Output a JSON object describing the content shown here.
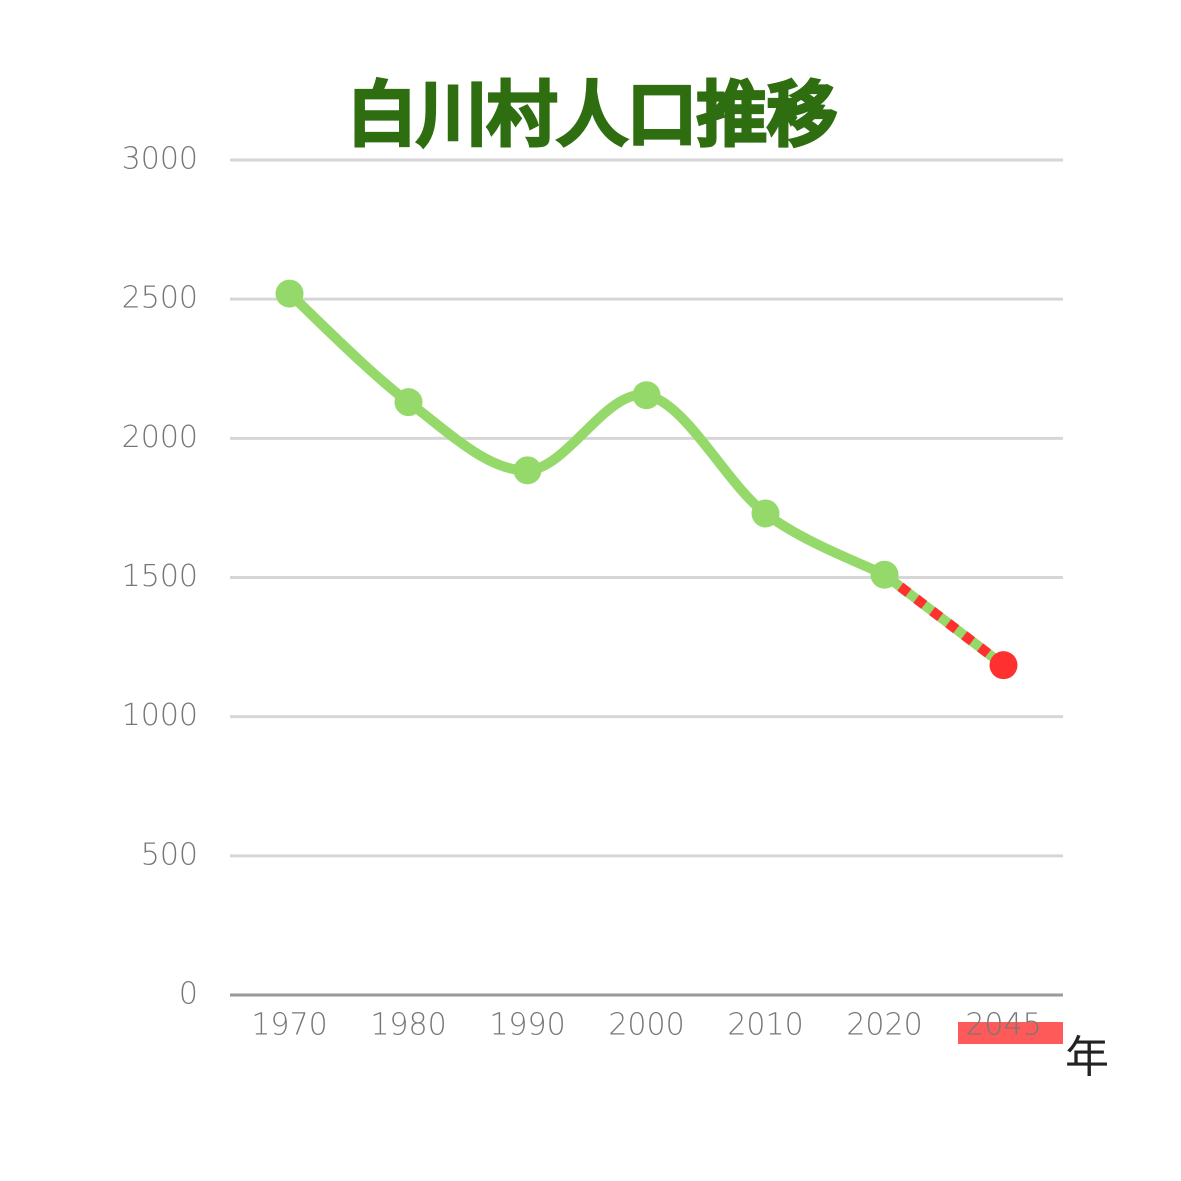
{
  "chart_data": {
    "type": "line",
    "title": "白川村人口推移",
    "x_label": "年",
    "categories": [
      "1970",
      "1980",
      "1990",
      "2000",
      "2010",
      "2020",
      "2045"
    ],
    "series": [
      {
        "color": "#96d96b",
        "values": [
          2520,
          2130,
          1885,
          2155,
          1730,
          1510,
          null
        ]
      },
      {
        "color": "#ff3030",
        "dashed": true,
        "values": [
          null,
          null,
          null,
          null,
          null,
          1510,
          1185
        ]
      }
    ],
    "ylim": [
      0,
      3000
    ],
    "yticks": [
      0,
      500,
      1000,
      1500,
      2000,
      2500,
      3000
    ],
    "grid": true
  }
}
